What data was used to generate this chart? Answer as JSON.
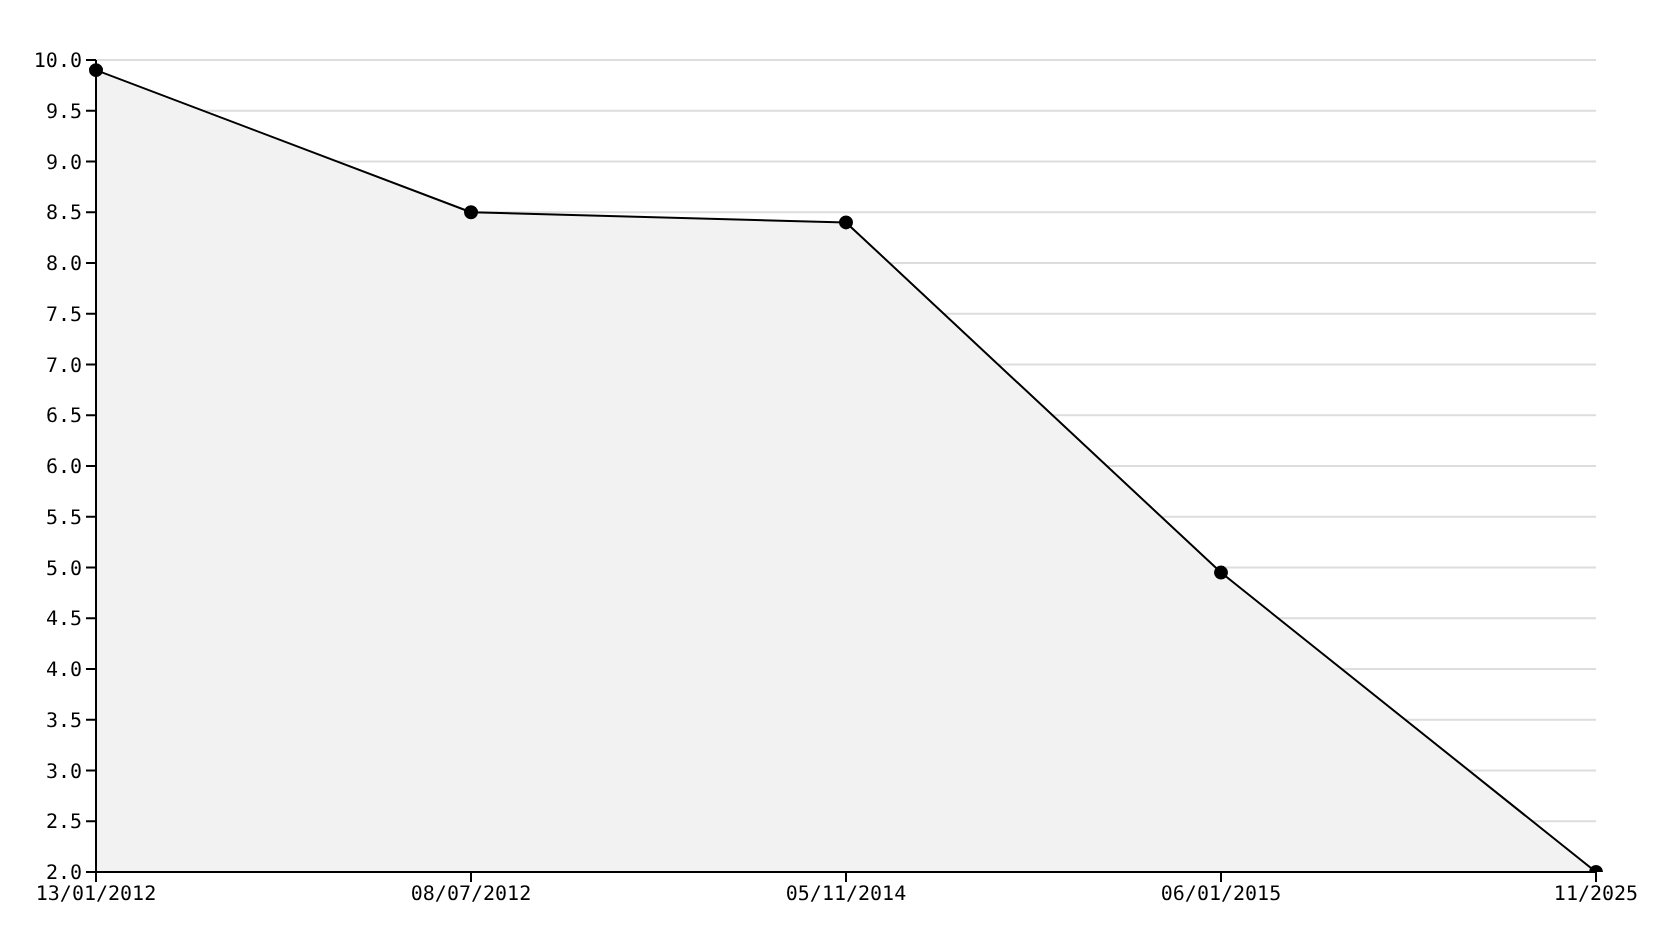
{
  "chart_data": {
    "type": "area",
    "categories": [
      "13/01/2012",
      "08/07/2012",
      "05/11/2014",
      "06/01/2015",
      "11/2025"
    ],
    "series": [
      {
        "color": "#000000",
        "values": [
          9.9,
          8.5,
          8.4,
          4.95,
          2.0
        ]
      }
    ],
    "ylim": [
      2,
      10
    ],
    "yticks": [
      {
        "value": 2,
        "label": "2.0"
      },
      {
        "value": 2.5,
        "label": "2.5"
      },
      {
        "value": 3,
        "label": "3.0"
      },
      {
        "value": 3.5,
        "label": "3.5"
      },
      {
        "value": 4,
        "label": "4.0"
      },
      {
        "value": 4.5,
        "label": "4.5"
      },
      {
        "value": 5,
        "label": "5.0"
      },
      {
        "value": 5.5,
        "label": "5.5"
      },
      {
        "value": 6,
        "label": "6.0"
      },
      {
        "value": 6.5,
        "label": "6.5"
      },
      {
        "value": 7,
        "label": "7.0"
      },
      {
        "value": 7.5,
        "label": "7.5"
      },
      {
        "value": 8,
        "label": "8.0"
      },
      {
        "value": 8.5,
        "label": "8.5"
      },
      {
        "value": 9,
        "label": "9.0"
      },
      {
        "value": 9.5,
        "label": "9.5"
      },
      {
        "value": 10,
        "label": "10.0"
      }
    ],
    "grid": "y",
    "marker": "circle",
    "legend": false
  }
}
